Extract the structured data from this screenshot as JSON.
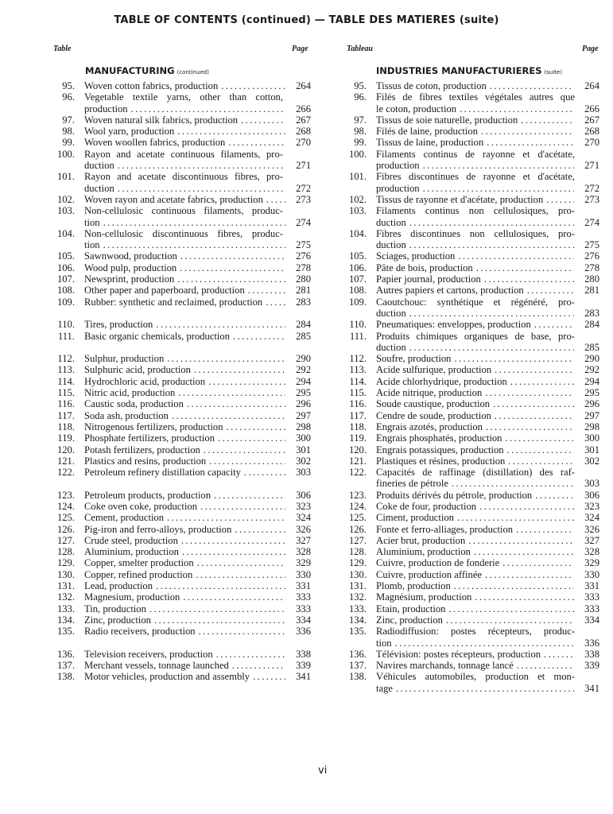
{
  "header": {
    "title": "TABLE OF CONTENTS (continued) — TABLE DES MATIERES (suite)"
  },
  "left": {
    "col_label": "Table",
    "page_label": "Page",
    "section": "MANUFACTURING",
    "section_note": "(continued)",
    "groups": [
      [
        {
          "n": "95.",
          "lines": [
            "Woven cotton fabrics, production"
          ],
          "page": "264"
        },
        {
          "n": "96.",
          "lines": [
            "Vegetable textile yarns, other than cotton,",
            "production"
          ],
          "page": "266"
        },
        {
          "n": "97.",
          "lines": [
            "Woven natural silk fabrics, production"
          ],
          "page": "267"
        },
        {
          "n": "98.",
          "lines": [
            "Wool yarn, production"
          ],
          "page": "268"
        },
        {
          "n": "99.",
          "lines": [
            "Woven woollen fabrics, production"
          ],
          "page": "270"
        },
        {
          "n": "100.",
          "lines": [
            "Rayon and acetate continuous filaments, pro-",
            "duction"
          ],
          "page": "271"
        },
        {
          "n": "101.",
          "lines": [
            "Rayon and acetate discontinuous fibres, pro-",
            "duction"
          ],
          "page": "272"
        },
        {
          "n": "102.",
          "lines": [
            "Woven rayon and acetate fabrics, production"
          ],
          "page": "273"
        },
        {
          "n": "103.",
          "lines": [
            "Non-cellulosic continuous filaments, produc-",
            "tion"
          ],
          "page": "274"
        },
        {
          "n": "104.",
          "lines": [
            "Non-cellulosic discontinuous fibres, produc-",
            "tion"
          ],
          "page": "275"
        },
        {
          "n": "105.",
          "lines": [
            "Sawnwood, production"
          ],
          "page": "276"
        },
        {
          "n": "106.",
          "lines": [
            "Wood pulp, production"
          ],
          "page": "278"
        },
        {
          "n": "107.",
          "lines": [
            "Newsprint, production"
          ],
          "page": "280"
        },
        {
          "n": "108.",
          "lines": [
            "Other paper and paperboard, production"
          ],
          "page": "281"
        },
        {
          "n": "109.",
          "lines": [
            "Rubber: synthetic and reclaimed, production"
          ],
          "page": "283"
        }
      ],
      [
        {
          "n": "110.",
          "lines": [
            "Tires, production"
          ],
          "page": "284"
        },
        {
          "n": "111.",
          "lines": [
            "Basic organic chemicals, production"
          ],
          "page": "285"
        }
      ],
      [
        {
          "n": "112.",
          "lines": [
            "Sulphur, production"
          ],
          "page": "290"
        },
        {
          "n": "113.",
          "lines": [
            "Sulphuric acid, production"
          ],
          "page": "292"
        },
        {
          "n": "114.",
          "lines": [
            "Hydrochloric acid, production"
          ],
          "page": "294"
        },
        {
          "n": "115.",
          "lines": [
            "Nitric acid, production"
          ],
          "page": "295"
        },
        {
          "n": "116.",
          "lines": [
            "Caustic soda, production"
          ],
          "page": "296"
        },
        {
          "n": "117.",
          "lines": [
            "Soda ash, production"
          ],
          "page": "297"
        },
        {
          "n": "118.",
          "lines": [
            "Nitrogenous fertilizers, production"
          ],
          "page": "298"
        },
        {
          "n": "119.",
          "lines": [
            "Phosphate fertilizers, production"
          ],
          "page": "300"
        },
        {
          "n": "120.",
          "lines": [
            "Potash fertilizers, production"
          ],
          "page": "301"
        },
        {
          "n": "121.",
          "lines": [
            "Plastics and resins, production"
          ],
          "page": "302"
        },
        {
          "n": "122.",
          "lines": [
            "Petroleum refinery distillation capacity"
          ],
          "page": "303"
        }
      ],
      [
        {
          "n": "123.",
          "lines": [
            "Petroleum products, production"
          ],
          "page": "306"
        },
        {
          "n": "124.",
          "lines": [
            "Coke oven coke, production"
          ],
          "page": "323"
        },
        {
          "n": "125.",
          "lines": [
            "Cement, production"
          ],
          "page": "324"
        },
        {
          "n": "126.",
          "lines": [
            "Pig-iron and ferro-alloys, production"
          ],
          "page": "326"
        },
        {
          "n": "127.",
          "lines": [
            "Crude steel, production"
          ],
          "page": "327"
        },
        {
          "n": "128.",
          "lines": [
            "Aluminium, production"
          ],
          "page": "328"
        },
        {
          "n": "129.",
          "lines": [
            "Copper, smelter production"
          ],
          "page": "329"
        },
        {
          "n": "130.",
          "lines": [
            "Copper, refined production"
          ],
          "page": "330"
        },
        {
          "n": "131.",
          "lines": [
            "Lead, production"
          ],
          "page": "331"
        },
        {
          "n": "132.",
          "lines": [
            "Magnesium, production"
          ],
          "page": "333"
        },
        {
          "n": "133.",
          "lines": [
            "Tin, production"
          ],
          "page": "333"
        },
        {
          "n": "134.",
          "lines": [
            "Zinc, production"
          ],
          "page": "334"
        },
        {
          "n": "135.",
          "lines": [
            "Radio receivers, production"
          ],
          "page": "336"
        }
      ],
      [
        {
          "n": "136.",
          "lines": [
            "Television receivers, production"
          ],
          "page": "338"
        },
        {
          "n": "137.",
          "lines": [
            "Merchant vessels, tonnage launched"
          ],
          "page": "339"
        },
        {
          "n": "138.",
          "lines": [
            "Motor vehicles, production and assembly"
          ],
          "page": "341"
        }
      ]
    ]
  },
  "right": {
    "col_label": "Tableau",
    "page_label": "Page",
    "section": "INDUSTRIES MANUFACTURIERES",
    "section_note": "(suite)",
    "groups": [
      [
        {
          "n": "95.",
          "lines": [
            "Tissus de coton, production"
          ],
          "page": "264"
        },
        {
          "n": "96.",
          "lines": [
            "Filés de fibres textiles végétales autres que",
            "le coton, production"
          ],
          "page": "266"
        },
        {
          "n": "97.",
          "lines": [
            "Tissus de soie naturelle, production"
          ],
          "page": "267"
        },
        {
          "n": "98.",
          "lines": [
            "Filés de laine, production"
          ],
          "page": "268"
        },
        {
          "n": "99.",
          "lines": [
            "Tissus de laine, production"
          ],
          "page": "270"
        },
        {
          "n": "100.",
          "lines": [
            "Filaments continus de rayonne et d'acétate,",
            "production"
          ],
          "page": "271"
        },
        {
          "n": "101.",
          "lines": [
            "Fibres discontinues de rayonne et d'acétate,",
            "production"
          ],
          "page": "272"
        },
        {
          "n": "102.",
          "lines": [
            "Tissus de rayonne et d'acétate, production"
          ],
          "page": "273"
        },
        {
          "n": "103.",
          "lines": [
            "Filaments continus non cellulosiques, pro-",
            "duction"
          ],
          "page": "274"
        },
        {
          "n": "104.",
          "lines": [
            "Fibres discontinues non cellulosiques, pro-",
            "duction"
          ],
          "page": "275"
        },
        {
          "n": "105.",
          "lines": [
            "Sciages, production"
          ],
          "page": "276"
        },
        {
          "n": "106.",
          "lines": [
            "Pâte de bois, production"
          ],
          "page": "278"
        },
        {
          "n": "107.",
          "lines": [
            "Papier journal, production"
          ],
          "page": "280"
        },
        {
          "n": "108.",
          "lines": [
            "Autres papiers et cartons, production"
          ],
          "page": "281"
        },
        {
          "n": "109.",
          "lines": [
            "Caoutchouc: synthétique et régénéré, pro-",
            "duction"
          ],
          "page": "283"
        }
      ],
      [
        {
          "n": "110.",
          "lines": [
            "Pneumatiques: enveloppes, production"
          ],
          "page": "284"
        },
        {
          "n": "111.",
          "lines": [
            "Produits chimiques organiques de base, pro-",
            "duction"
          ],
          "page": "285"
        }
      ],
      [
        {
          "n": "112.",
          "lines": [
            "Soufre, production"
          ],
          "page": "290"
        },
        {
          "n": "113.",
          "lines": [
            "Acide sulfurique, production"
          ],
          "page": "292"
        },
        {
          "n": "114.",
          "lines": [
            "Acide chlorhydrique, production"
          ],
          "page": "294"
        },
        {
          "n": "115.",
          "lines": [
            "Acide nitrique, production"
          ],
          "page": "295"
        },
        {
          "n": "116.",
          "lines": [
            "Soude caustique, production"
          ],
          "page": "296"
        },
        {
          "n": "117.",
          "lines": [
            "Cendre de soude, production"
          ],
          "page": "297"
        },
        {
          "n": "118.",
          "lines": [
            "Engrais azotés, production"
          ],
          "page": "298"
        },
        {
          "n": "119.",
          "lines": [
            "Engrais phosphatés, production"
          ],
          "page": "300"
        },
        {
          "n": "120.",
          "lines": [
            "Engrais potassiques, production"
          ],
          "page": "301"
        },
        {
          "n": "121.",
          "lines": [
            "Plastiques et résines, production"
          ],
          "page": "302"
        },
        {
          "n": "122.",
          "lines": [
            "Capacités de raffinage (distillation) des raf-",
            "fineries de pétrole"
          ],
          "page": "303"
        }
      ],
      [
        {
          "n": "123.",
          "lines": [
            "Produits dérivés du pétrole, production"
          ],
          "page": "306"
        },
        {
          "n": "124.",
          "lines": [
            "Coke de four, production"
          ],
          "page": "323"
        },
        {
          "n": "125.",
          "lines": [
            "Ciment, production"
          ],
          "page": "324"
        },
        {
          "n": "126.",
          "lines": [
            "Fonte et ferro-alliages, production"
          ],
          "page": "326"
        },
        {
          "n": "127.",
          "lines": [
            "Acier brut, production"
          ],
          "page": "327"
        },
        {
          "n": "128.",
          "lines": [
            "Aluminium, production"
          ],
          "page": "328"
        },
        {
          "n": "129.",
          "lines": [
            "Cuivre, production de fonderie"
          ],
          "page": "329"
        },
        {
          "n": "130.",
          "lines": [
            "Cuivre, production affinée"
          ],
          "page": "330"
        },
        {
          "n": "131.",
          "lines": [
            "Plomb, production"
          ],
          "page": "331"
        },
        {
          "n": "132.",
          "lines": [
            "Magnésium, production"
          ],
          "page": "333"
        },
        {
          "n": "133.",
          "lines": [
            "Etain, production"
          ],
          "page": "333"
        },
        {
          "n": "134.",
          "lines": [
            "Zinc, production"
          ],
          "page": "334"
        },
        {
          "n": "135.",
          "lines": [
            "Radiodiffusion: postes récepteurs, produc-",
            "tion"
          ],
          "page": "336"
        }
      ],
      [
        {
          "n": "136.",
          "lines": [
            "Télévision: postes récepteurs, production"
          ],
          "page": "338"
        },
        {
          "n": "137.",
          "lines": [
            "Navires marchands, tonnage lancé"
          ],
          "page": "339"
        },
        {
          "n": "138.",
          "lines": [
            "Véhicules automobiles, production et mon-",
            "tage"
          ],
          "page": "341"
        }
      ]
    ]
  },
  "footer": {
    "folio": "vi"
  }
}
